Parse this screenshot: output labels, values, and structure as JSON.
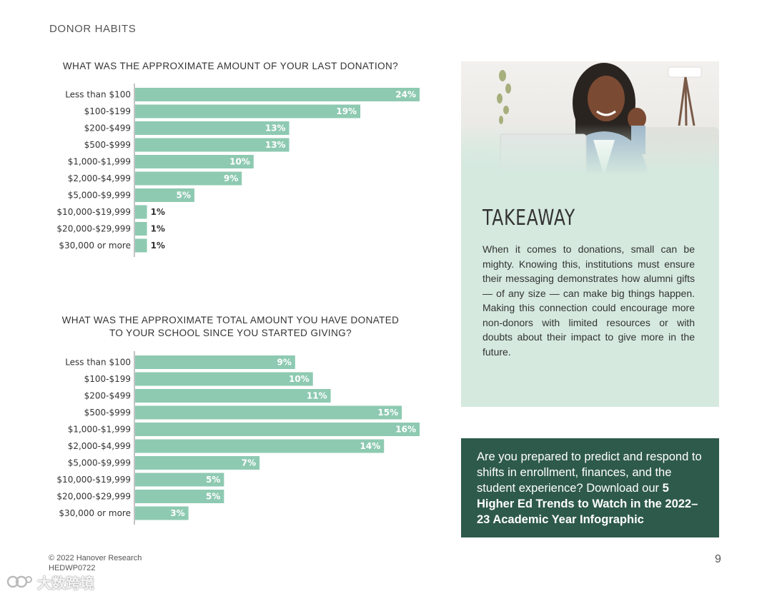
{
  "section_label": "DONOR HABITS",
  "colors": {
    "bar": "#8ecab1",
    "panel": "#d5e9df",
    "cta": "#2e5a4b"
  },
  "chart_data": [
    {
      "type": "bar",
      "orientation": "horizontal",
      "title": "WHAT WAS THE APPROXIMATE AMOUNT OF YOUR LAST DONATION?",
      "categories": [
        "Less than $100",
        "$100-$199",
        "$200-$499",
        "$500-$999",
        "$1,000-$1,999",
        "$2,000-$4,999",
        "$5,000-$9,999",
        "$10,000-$19,999",
        "$20,000-$29,999",
        "$30,000 or more"
      ],
      "values": [
        24,
        19,
        13,
        13,
        10,
        9,
        5,
        1,
        1,
        1
      ],
      "unit": "%",
      "xlim": [
        0,
        24
      ]
    },
    {
      "type": "bar",
      "orientation": "horizontal",
      "title_lines": [
        "WHAT WAS THE APPROXIMATE TOTAL AMOUNT YOU HAVE DONATED",
        "TO YOUR SCHOOL SINCE YOU STARTED GIVING?"
      ],
      "categories": [
        "Less than $100",
        "$100-$199",
        "$200-$499",
        "$500-$999",
        "$1,000-$1,999",
        "$2,000-$4,999",
        "$5,000-$9,999",
        "$10,000-$19,999",
        "$20,000-$29,999",
        "$30,000 or more"
      ],
      "values": [
        9,
        10,
        11,
        15,
        16,
        14,
        7,
        5,
        5,
        3
      ],
      "unit": "%",
      "xlim": [
        0,
        16
      ]
    }
  ],
  "takeaway": {
    "title": "TAKEAWAY",
    "text": "When it comes to donations, small can be mighty. Knowing this, institutions must ensure their messaging demonstrates how alumni gifts — of any size — can make big things happen. Making this connection could encourage more non-donors with limited resources or with doubts about their impact to give more in the future."
  },
  "cta": {
    "text": "Are you prepared to predict and respond to shifts in enrollment, finances, and the student experience? Download our",
    "bold_text": "5 Higher Ed Trends to Watch in the 2022–23 Academic Year Infographic"
  },
  "footer": {
    "copyright": "© 2022 Hanover Research",
    "code": "HEDWP0722",
    "page_number": "9"
  },
  "watermark": {
    "text": "大数跨境"
  }
}
